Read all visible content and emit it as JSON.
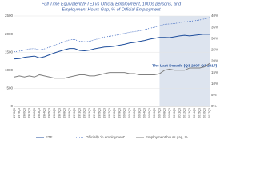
{
  "chart_data": {
    "type": "line",
    "title": "Full Time Equivalent (FTE) vs Official Employment, 1000s persons, and",
    "subtitle": "Employment Hours Gap, % of Official Employment",
    "annotation": "The Last Decade (Q3 2007-Q3 2017)",
    "shade": [
      "2007Q3",
      "2017Q3"
    ],
    "shade_color": "#dde4ef",
    "categories": [
      "1978Q3",
      "1979Q3",
      "1980Q3",
      "1981Q3",
      "1982Q3",
      "1983Q3",
      "1984Q3",
      "1985Q3",
      "1986Q3",
      "1987Q3",
      "1988Q3",
      "1989Q3",
      "1990Q3",
      "1991Q3",
      "1992Q3",
      "1993Q3",
      "1994Q3",
      "1995Q3",
      "1996Q3",
      "1997Q3",
      "1998Q3",
      "1999Q3",
      "2000Q3",
      "2001Q3",
      "2002Q3",
      "2003Q3",
      "2004Q3",
      "2005Q3",
      "2006Q3",
      "2007Q3",
      "2008Q3",
      "2009Q3",
      "2010Q3",
      "2011Q3",
      "2012Q3",
      "2013Q3",
      "2014Q3",
      "2015Q3",
      "2016Q3",
      "2017Q3"
    ],
    "series": [
      {
        "name": "FTE",
        "color": "#1f4e9c",
        "dash": "solid",
        "values": [
          1314,
          1323,
          1357,
          1375,
          1392,
          1342,
          1375,
          1427,
          1479,
          1523,
          1566,
          1601,
          1600,
          1548,
          1539,
          1557,
          1592,
          1617,
          1642,
          1649,
          1666,
          1692,
          1717,
          1753,
          1770,
          1797,
          1823,
          1858,
          1883,
          1907,
          1907,
          1904,
          1924,
          1949,
          1966,
          1951,
          1967,
          1984,
          1997,
          1993
        ]
      },
      {
        "name": "Officially 'in employment'",
        "color": "#4a72c4",
        "dash": "dotted",
        "values": [
          1510,
          1530,
          1560,
          1590,
          1600,
          1560,
          1590,
          1640,
          1690,
          1740,
          1790,
          1840,
          1850,
          1800,
          1790,
          1800,
          1840,
          1880,
          1920,
          1940,
          1960,
          1990,
          2020,
          2050,
          2070,
          2090,
          2120,
          2160,
          2190,
          2230,
          2270,
          2280,
          2290,
          2320,
          2340,
          2350,
          2370,
          2390,
          2420,
          2460
        ]
      },
      {
        "name": "Employment hours gap, %",
        "color": "#808080",
        "dash": "solid",
        "axis": "y2",
        "values": [
          13,
          13.5,
          13,
          13.5,
          13,
          14,
          13.5,
          13,
          12.5,
          12.5,
          12.5,
          13,
          13.5,
          14,
          14,
          13.5,
          13.5,
          14,
          14.5,
          15,
          15,
          15,
          15,
          14.5,
          14.5,
          14,
          14,
          14,
          14,
          14.5,
          16,
          16.5,
          16,
          16,
          16,
          17,
          17,
          17,
          17.5,
          19
        ]
      }
    ],
    "ylim": [
      0,
      2500
    ],
    "yticks": [
      0,
      500,
      1000,
      1500,
      2000,
      2500
    ],
    "y2lim": [
      0,
      40
    ],
    "y2ticks": [
      {
        "value": 0,
        "label": "0%"
      },
      {
        "value": 5,
        "label": "5%"
      },
      {
        "value": 10,
        "label": "10%"
      },
      {
        "value": 15,
        "label": "15%"
      },
      {
        "value": 20,
        "label": "20%"
      },
      {
        "value": 25,
        "label": "25%"
      },
      {
        "value": 30,
        "label": "30%"
      },
      {
        "value": 35,
        "label": "35%"
      },
      {
        "value": 40,
        "label": "40%"
      }
    ],
    "grid": true
  }
}
